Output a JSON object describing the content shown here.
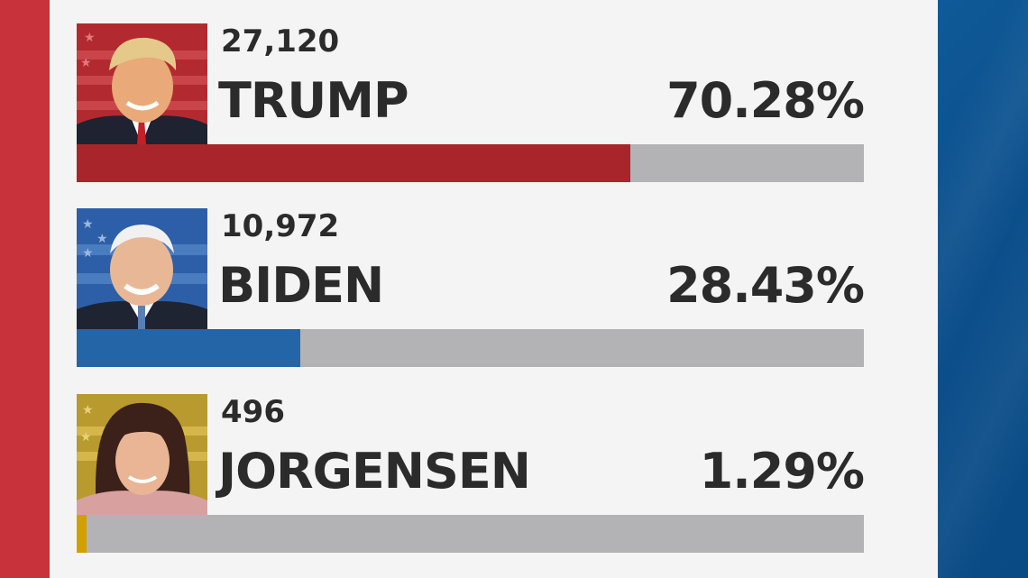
{
  "colors": {
    "left_band": "#c8323a",
    "right_band": "#0b4f8c",
    "bar_track": "#b3b3b6"
  },
  "candidates": [
    {
      "name": "TRUMP",
      "votes": "27,120",
      "percent": "70.28%",
      "share": 0.7028,
      "bar_color": "#a8262b",
      "photo": "trump-portrait"
    },
    {
      "name": "BIDEN",
      "votes": "10,972",
      "percent": "28.43%",
      "share": 0.2843,
      "bar_color": "#2465a8",
      "photo": "biden-portrait"
    },
    {
      "name": "JORGENSEN",
      "votes": "496",
      "percent": "1.29%",
      "share": 0.0129,
      "bar_color": "#d2a000",
      "photo": "jorgensen-portrait"
    }
  ]
}
